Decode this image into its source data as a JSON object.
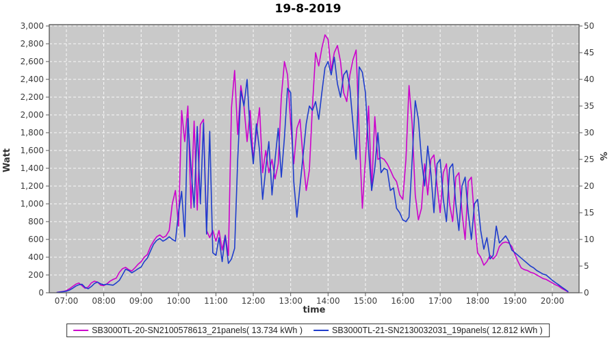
{
  "title": "19-8-2019",
  "chart_data": {
    "type": "line",
    "title": "19-8-2019",
    "xlabel": "time",
    "ylabel_left": "Watt",
    "ylabel_right": "%",
    "x_tick_labels": [
      "07:00",
      "08:00",
      "09:00",
      "10:00",
      "11:00",
      "12:00",
      "13:00",
      "14:00",
      "15:00",
      "16:00",
      "17:00",
      "18:00",
      "19:00",
      "20:00"
    ],
    "y_left_tick_labels": [
      "0",
      "200",
      "400",
      "600",
      "800",
      "1,000",
      "1,200",
      "1,400",
      "1,600",
      "1,800",
      "2,000",
      "2,200",
      "2,400",
      "2,600",
      "2,800",
      "3,000"
    ],
    "y_right_tick_labels": [
      "0",
      "5",
      "10",
      "15",
      "20",
      "25",
      "30",
      "35",
      "40",
      "45",
      "50"
    ],
    "ylim_left": [
      0,
      3000
    ],
    "ylim_right": [
      0,
      50
    ],
    "grid": "white dashed gridlines on gray plot background",
    "legend_position": "bottom-center",
    "plot_background": "#c9c9c9",
    "grid_color": "#ffffff",
    "axis_color": "#555555",
    "t_start_minutes": 405,
    "t_step_minutes": 5,
    "series": [
      {
        "name": "SB3000TL-20-SN2100578613_21panels( 13.734 kWh )",
        "color": "#cc00cc",
        "energy_kwh": 13.734,
        "values": [
          5,
          10,
          15,
          25,
          45,
          70,
          95,
          110,
          80,
          50,
          65,
          110,
          130,
          120,
          85,
          80,
          100,
          130,
          150,
          165,
          230,
          270,
          285,
          260,
          245,
          280,
          320,
          350,
          400,
          430,
          520,
          580,
          630,
          650,
          620,
          640,
          700,
          1000,
          1150,
          750,
          2050,
          1700,
          2100,
          950,
          1930,
          930,
          1890,
          1950,
          700,
          620,
          700,
          580,
          700,
          480,
          650,
          420,
          2080,
          2500,
          1780,
          2330,
          2100,
          1700,
          2050,
          1500,
          1800,
          2080,
          1350,
          1600,
          1350,
          1500,
          1280,
          1450,
          2200,
          2600,
          2450,
          1900,
          1450,
          1850,
          1950,
          1500,
          1150,
          1380,
          2100,
          2700,
          2550,
          2750,
          2900,
          2850,
          2500,
          2700,
          2780,
          2600,
          2250,
          2150,
          2450,
          2620,
          2730,
          1800,
          950,
          1500,
          2100,
          1150,
          1980,
          1500,
          1520,
          1500,
          1450,
          1380,
          1300,
          1250,
          1100,
          1050,
          1500,
          2330,
          1900,
          1100,
          820,
          950,
          1450,
          1100,
          1500,
          1550,
          1200,
          900,
          1350,
          1450,
          1000,
          800,
          1300,
          1350,
          900,
          600,
          1250,
          1300,
          830,
          450,
          400,
          310,
          350,
          420,
          380,
          420,
          520,
          560,
          570,
          560,
          520,
          430,
          350,
          280,
          260,
          250,
          230,
          220,
          200,
          180,
          160,
          150,
          130,
          110,
          90,
          75,
          50,
          30,
          10
        ]
      },
      {
        "name": "SB3000TL-21-SN2130032031_19panels( 12.812 kWh )",
        "color": "#1e3ccc",
        "energy_kwh": 12.812,
        "values": [
          3,
          8,
          12,
          18,
          30,
          50,
          75,
          90,
          95,
          60,
          45,
          70,
          105,
          120,
          100,
          90,
          95,
          90,
          85,
          110,
          140,
          200,
          265,
          250,
          225,
          245,
          270,
          290,
          350,
          390,
          470,
          545,
          590,
          610,
          580,
          600,
          630,
          600,
          580,
          900,
          1140,
          630,
          1960,
          1400,
          960,
          1870,
          1000,
          1910,
          660,
          1815,
          450,
          420,
          620,
          350,
          640,
          330,
          380,
          500,
          1500,
          2270,
          2100,
          2400,
          1800,
          1450,
          1900,
          1600,
          1050,
          1400,
          1700,
          1100,
          1500,
          1850,
          1300,
          1750,
          2300,
          2250,
          1250,
          850,
          1200,
          1550,
          1900,
          2100,
          2050,
          2150,
          1950,
          2250,
          2530,
          2600,
          2450,
          2650,
          2350,
          2200,
          2450,
          2500,
          2300,
          1900,
          1500,
          2540,
          2480,
          2250,
          1600,
          1150,
          1400,
          1800,
          1350,
          1400,
          1380,
          1150,
          1180,
          950,
          900,
          820,
          800,
          850,
          1500,
          2160,
          1950,
          1500,
          1200,
          1650,
          1350,
          900,
          1450,
          1500,
          1050,
          800,
          1400,
          1450,
          1000,
          700,
          1200,
          1300,
          900,
          600,
          1000,
          1050,
          700,
          490,
          620,
          380,
          420,
          750,
          560,
          600,
          640,
          580,
          480,
          450,
          420,
          390,
          360,
          330,
          300,
          280,
          250,
          230,
          210,
          200,
          170,
          140,
          115,
          90,
          65,
          40,
          15
        ]
      }
    ]
  }
}
